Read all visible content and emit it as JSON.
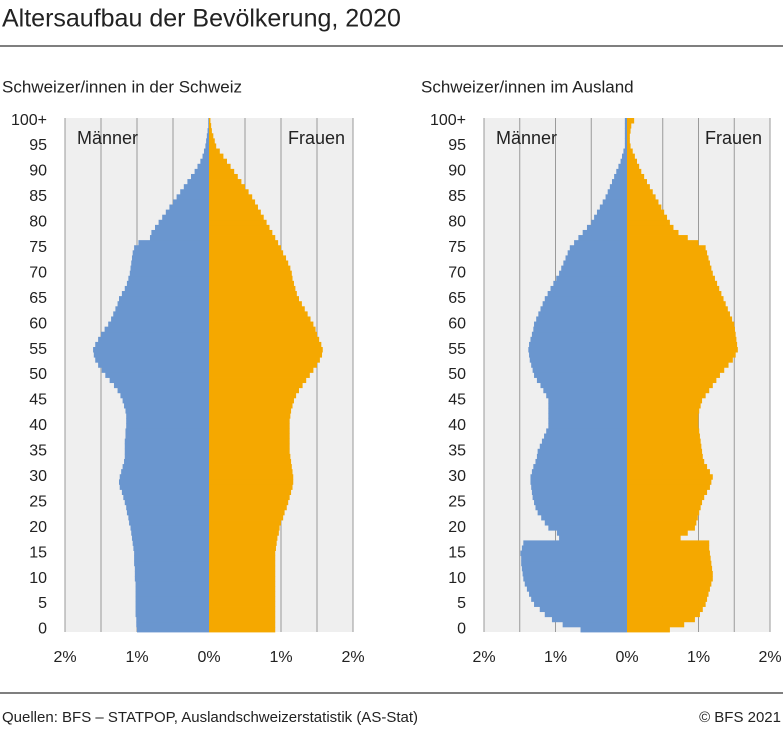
{
  "title": "Altersaufbau der Bevölkerung, 2020",
  "source": "Quellen: BFS – STATPOP, Auslandschweizerstatistik (AS-Stat)",
  "copyright": "© BFS 2021",
  "chart_data": [
    {
      "type": "pyramid",
      "subtitle": "Schweizer/innen in der Schweiz",
      "categories": [
        "0",
        null,
        null,
        null,
        null,
        "5",
        null,
        null,
        null,
        null,
        "10",
        null,
        null,
        null,
        null,
        "15",
        null,
        null,
        null,
        null,
        "20",
        null,
        null,
        null,
        null,
        "25",
        null,
        null,
        null,
        null,
        "30",
        null,
        null,
        null,
        null,
        "35",
        null,
        null,
        null,
        null,
        "40",
        null,
        null,
        null,
        null,
        "45",
        null,
        null,
        null,
        null,
        "50",
        null,
        null,
        null,
        null,
        "55",
        null,
        null,
        null,
        null,
        "60",
        null,
        null,
        null,
        null,
        "65",
        null,
        null,
        null,
        null,
        "70",
        null,
        null,
        null,
        null,
        "75",
        null,
        null,
        null,
        null,
        "80",
        null,
        null,
        null,
        null,
        "85",
        null,
        null,
        null,
        null,
        "90",
        null,
        null,
        null,
        null,
        "95",
        null,
        null,
        null,
        null,
        "100+"
      ],
      "series": [
        {
          "name": "Männer",
          "color": "#6a96cf",
          "side": "left",
          "values": [
            1.0,
            1.01,
            1.01,
            1.02,
            1.02,
            1.02,
            1.02,
            1.02,
            1.02,
            1.02,
            1.03,
            1.03,
            1.03,
            1.04,
            1.04,
            1.04,
            1.05,
            1.06,
            1.07,
            1.08,
            1.09,
            1.11,
            1.12,
            1.14,
            1.15,
            1.17,
            1.19,
            1.21,
            1.24,
            1.25,
            1.24,
            1.22,
            1.2,
            1.18,
            1.17,
            1.17,
            1.17,
            1.17,
            1.16,
            1.16,
            1.15,
            1.15,
            1.15,
            1.16,
            1.18,
            1.2,
            1.23,
            1.27,
            1.32,
            1.38,
            1.44,
            1.49,
            1.54,
            1.58,
            1.6,
            1.61,
            1.58,
            1.54,
            1.5,
            1.45,
            1.4,
            1.36,
            1.33,
            1.3,
            1.27,
            1.25,
            1.21,
            1.17,
            1.14,
            1.12,
            1.1,
            1.09,
            1.08,
            1.07,
            1.06,
            1.04,
            0.98,
            0.82,
            0.8,
            0.75,
            0.7,
            0.65,
            0.6,
            0.55,
            0.5,
            0.45,
            0.4,
            0.35,
            0.3,
            0.25,
            0.2,
            0.16,
            0.12,
            0.09,
            0.07,
            0.05,
            0.04,
            0.03,
            0.02,
            0.01,
            0.01
          ]
        },
        {
          "name": "Frauen",
          "color": "#f5a800",
          "side": "right",
          "values": [
            0.92,
            0.92,
            0.92,
            0.92,
            0.92,
            0.92,
            0.92,
            0.92,
            0.92,
            0.92,
            0.92,
            0.92,
            0.92,
            0.92,
            0.92,
            0.92,
            0.93,
            0.94,
            0.95,
            0.97,
            0.98,
            1.0,
            1.03,
            1.05,
            1.08,
            1.1,
            1.12,
            1.14,
            1.16,
            1.17,
            1.17,
            1.16,
            1.15,
            1.14,
            1.13,
            1.12,
            1.12,
            1.12,
            1.12,
            1.12,
            1.12,
            1.12,
            1.13,
            1.14,
            1.16,
            1.18,
            1.21,
            1.25,
            1.3,
            1.35,
            1.4,
            1.45,
            1.5,
            1.54,
            1.57,
            1.58,
            1.56,
            1.53,
            1.5,
            1.48,
            1.45,
            1.41,
            1.37,
            1.33,
            1.29,
            1.25,
            1.22,
            1.2,
            1.18,
            1.16,
            1.15,
            1.13,
            1.1,
            1.07,
            1.03,
            1.0,
            0.96,
            0.92,
            0.88,
            0.84,
            0.8,
            0.76,
            0.72,
            0.68,
            0.64,
            0.6,
            0.55,
            0.5,
            0.45,
            0.4,
            0.35,
            0.3,
            0.25,
            0.2,
            0.15,
            0.1,
            0.08,
            0.06,
            0.04,
            0.03,
            0.02
          ]
        }
      ],
      "xlim": [
        -2,
        2
      ],
      "xticks": [
        {
          "value": -2,
          "label": "2%"
        },
        {
          "value": -1,
          "label": "1%"
        },
        {
          "value": 0,
          "label": "0%"
        },
        {
          "value": 1,
          "label": "1%"
        },
        {
          "value": 2,
          "label": "2%"
        }
      ],
      "minor_grid": [
        -1.5,
        -0.5,
        0.5,
        1.5
      ],
      "grid": true
    },
    {
      "type": "pyramid",
      "subtitle": "Schweizer/innen im Ausland",
      "categories": [
        "0",
        null,
        null,
        null,
        null,
        "5",
        null,
        null,
        null,
        null,
        "10",
        null,
        null,
        null,
        null,
        "15",
        null,
        null,
        null,
        null,
        "20",
        null,
        null,
        null,
        null,
        "25",
        null,
        null,
        null,
        null,
        "30",
        null,
        null,
        null,
        null,
        "35",
        null,
        null,
        null,
        null,
        "40",
        null,
        null,
        null,
        null,
        "45",
        null,
        null,
        null,
        null,
        "50",
        null,
        null,
        null,
        null,
        "55",
        null,
        null,
        null,
        null,
        "60",
        null,
        null,
        null,
        null,
        "65",
        null,
        null,
        null,
        null,
        "70",
        null,
        null,
        null,
        null,
        "75",
        null,
        null,
        null,
        null,
        "80",
        null,
        null,
        null,
        null,
        "85",
        null,
        null,
        null,
        null,
        "90",
        null,
        null,
        null,
        null,
        "95",
        null,
        null,
        null,
        null,
        "100+"
      ],
      "series": [
        {
          "name": "Männer",
          "color": "#6a96cf",
          "side": "left",
          "values": [
            0.65,
            0.9,
            1.05,
            1.15,
            1.22,
            1.3,
            1.34,
            1.37,
            1.4,
            1.43,
            1.45,
            1.46,
            1.47,
            1.48,
            1.48,
            1.49,
            1.47,
            1.45,
            0.95,
            0.98,
            1.1,
            1.15,
            1.2,
            1.25,
            1.28,
            1.3,
            1.32,
            1.33,
            1.34,
            1.35,
            1.35,
            1.33,
            1.31,
            1.28,
            1.26,
            1.25,
            1.22,
            1.19,
            1.16,
            1.13,
            1.1,
            1.1,
            1.1,
            1.1,
            1.1,
            1.1,
            1.13,
            1.17,
            1.21,
            1.26,
            1.3,
            1.32,
            1.34,
            1.36,
            1.37,
            1.38,
            1.37,
            1.35,
            1.33,
            1.31,
            1.3,
            1.27,
            1.24,
            1.21,
            1.18,
            1.15,
            1.11,
            1.07,
            1.03,
            0.99,
            0.95,
            0.92,
            0.89,
            0.86,
            0.83,
            0.8,
            0.74,
            0.68,
            0.62,
            0.56,
            0.5,
            0.46,
            0.42,
            0.38,
            0.34,
            0.3,
            0.27,
            0.24,
            0.21,
            0.18,
            0.15,
            0.12,
            0.09,
            0.07,
            0.05,
            0.03,
            0.03,
            0.03,
            0.03,
            0.03,
            0.03
          ]
        },
        {
          "name": "Frauen",
          "color": "#f5a800",
          "side": "right",
          "values": [
            0.6,
            0.8,
            0.95,
            1.02,
            1.06,
            1.1,
            1.12,
            1.14,
            1.16,
            1.18,
            1.2,
            1.2,
            1.19,
            1.18,
            1.17,
            1.16,
            1.15,
            1.15,
            0.75,
            0.85,
            0.95,
            0.97,
            0.99,
            1.01,
            1.03,
            1.05,
            1.08,
            1.12,
            1.16,
            1.18,
            1.2,
            1.16,
            1.12,
            1.08,
            1.06,
            1.05,
            1.04,
            1.03,
            1.02,
            1.01,
            1.0,
            1.0,
            1.0,
            1.01,
            1.03,
            1.05,
            1.1,
            1.15,
            1.2,
            1.25,
            1.3,
            1.36,
            1.42,
            1.48,
            1.52,
            1.55,
            1.54,
            1.53,
            1.52,
            1.51,
            1.5,
            1.47,
            1.44,
            1.41,
            1.38,
            1.35,
            1.32,
            1.29,
            1.26,
            1.23,
            1.2,
            1.18,
            1.16,
            1.14,
            1.12,
            1.1,
            1.0,
            0.85,
            0.72,
            0.65,
            0.6,
            0.56,
            0.52,
            0.48,
            0.44,
            0.4,
            0.36,
            0.32,
            0.28,
            0.24,
            0.2,
            0.17,
            0.14,
            0.11,
            0.08,
            0.05,
            0.04,
            0.04,
            0.05,
            0.06,
            0.1
          ]
        }
      ],
      "xlim": [
        -2,
        2
      ],
      "xticks": [
        {
          "value": -2,
          "label": "2%"
        },
        {
          "value": -1,
          "label": "1%"
        },
        {
          "value": 0,
          "label": "0%"
        },
        {
          "value": 1,
          "label": "1%"
        },
        {
          "value": 2,
          "label": "2%"
        }
      ],
      "minor_grid": [
        -1.5,
        -0.5,
        0.5,
        1.5
      ],
      "grid": true
    }
  ]
}
